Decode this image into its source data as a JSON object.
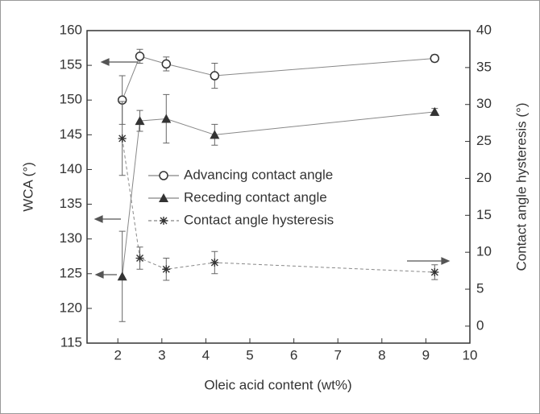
{
  "chart_data": {
    "type": "line",
    "x_label": "Oleic acid content (wt%)",
    "y_label": "WCA (°)",
    "y2_label": "Contact angle hysteresis (°)",
    "xlim": [
      1.3,
      10
    ],
    "xticks": [
      2,
      3,
      4,
      5,
      6,
      7,
      8,
      9,
      10
    ],
    "ylim": [
      115,
      160
    ],
    "yticks": [
      115,
      120,
      125,
      130,
      135,
      140,
      145,
      150,
      155,
      160
    ],
    "y2lim": [
      -2.3,
      40
    ],
    "y2ticks": [
      0,
      5,
      10,
      15,
      20,
      25,
      30,
      35,
      40
    ],
    "x": [
      2.1,
      2.5,
      3.1,
      4.2,
      9.2
    ],
    "series": [
      {
        "name": "Advancing contact angle",
        "marker": "circle",
        "color": "#333333",
        "values": [
          150,
          156.3,
          155.2,
          153.5,
          156
        ],
        "errors": [
          3.5,
          1,
          1,
          1.8,
          0.5
        ]
      },
      {
        "name": "Receding contact angle",
        "marker": "triangle",
        "color": "#333333",
        "values": [
          124.6,
          147,
          147.3,
          145,
          148.3
        ],
        "errors": [
          6.5,
          1.5,
          3.5,
          1.5,
          0.5
        ]
      },
      {
        "name": "Contact angle hysteresis",
        "marker": "asterisk",
        "color": "#333333",
        "axis": "y2",
        "values": [
          25.4,
          9.2,
          7.7,
          8.6,
          7.3
        ],
        "errors": [
          5,
          1.5,
          1.5,
          1.5,
          1
        ]
      }
    ]
  }
}
